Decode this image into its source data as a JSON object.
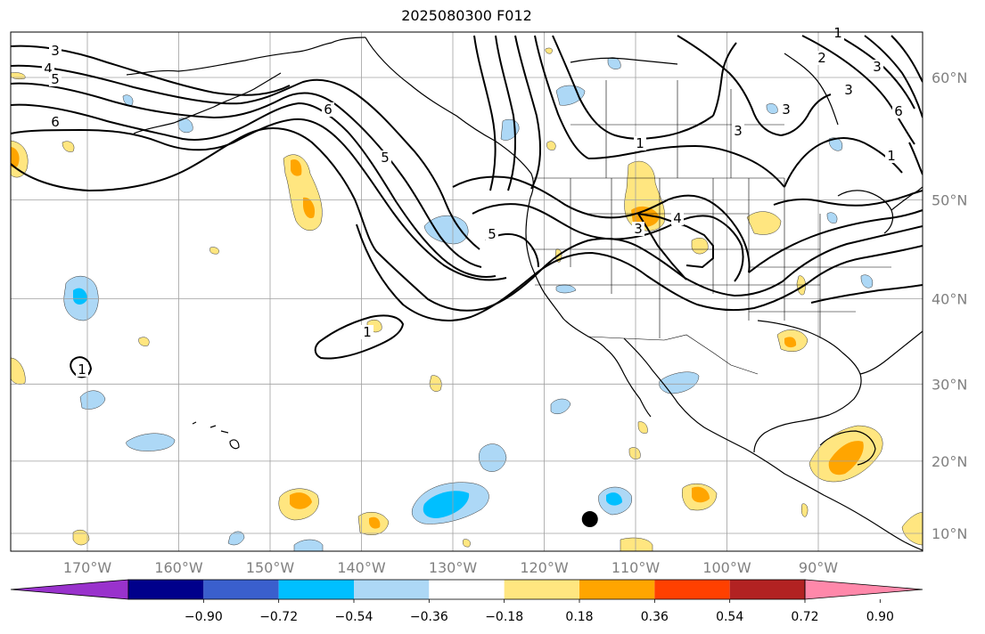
{
  "title": "2025080300 F012",
  "lon_ticks": [
    {
      "deg": -170,
      "label": "170°W"
    },
    {
      "deg": -160,
      "label": "160°W"
    },
    {
      "deg": -150,
      "label": "150°W"
    },
    {
      "deg": -140,
      "label": "140°W"
    },
    {
      "deg": -130,
      "label": "130°W"
    },
    {
      "deg": -120,
      "label": "120°W"
    },
    {
      "deg": -110,
      "label": "110°W"
    },
    {
      "deg": -100,
      "label": "100°W"
    },
    {
      "deg": -90,
      "label": "90°W"
    }
  ],
  "lat_ticks": [
    {
      "deg": 60,
      "label": "60°N"
    },
    {
      "deg": 50,
      "label": "50°N"
    },
    {
      "deg": 40,
      "label": "40°N"
    },
    {
      "deg": 30,
      "label": "30°N"
    },
    {
      "deg": 20,
      "label": "20°N"
    },
    {
      "deg": 10,
      "label": "10°N"
    }
  ],
  "map_extent": {
    "lon_min": -178,
    "lon_max": -78,
    "lat_min": 8,
    "lat_max": 65
  },
  "colorbar": {
    "levels": [
      "−0.90",
      "−0.72",
      "−0.54",
      "−0.36",
      "−0.18",
      "0.18",
      "0.36",
      "0.54",
      "0.72",
      "0.90"
    ],
    "colors": [
      "#9932cc",
      "#00008b",
      "#3a5fcd",
      "#00bfff",
      "#add8f6",
      "#ffffff",
      "#ffe680",
      "#ffa500",
      "#ff4000",
      "#b22222",
      "#ff88aa"
    ],
    "extend": "both"
  },
  "contour_labels": [
    "3",
    "4",
    "5",
    "6",
    "6",
    "5",
    "5",
    "4",
    "3",
    "1",
    "1",
    "1",
    "3",
    "2",
    "3",
    "6",
    "1",
    "1",
    "3",
    "3"
  ],
  "marker": {
    "lon": -115,
    "lat": 12,
    "color": "#000000"
  },
  "colors": {
    "positive_light": "#ffe680",
    "positive_mid": "#ffa500",
    "negative_light": "#add8f6",
    "negative_mid": "#00bfff",
    "grid": "#a0a0a0",
    "tick_label": "#808080"
  }
}
